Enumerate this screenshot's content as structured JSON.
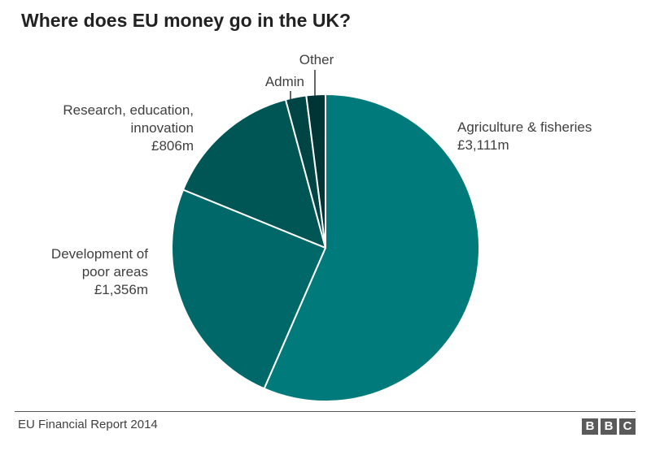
{
  "title": "Where does EU money go in the UK?",
  "source": "EU Financial Report 2014",
  "logo": [
    "B",
    "B",
    "C"
  ],
  "chart_data": {
    "type": "pie",
    "title": "Where does EU money go in the UK?",
    "slices": [
      {
        "label_lines": [
          "Agriculture & fisheries"
        ],
        "value_label": "£3,111m",
        "value": 3111,
        "color": "#007a7a"
      },
      {
        "label_lines": [
          "Development of",
          "poor areas"
        ],
        "value_label": "£1,356m",
        "value": 1356,
        "color": "#006868"
      },
      {
        "label_lines": [
          "Research, education,",
          "innovation"
        ],
        "value_label": "£806m",
        "value": 806,
        "color": "#005555"
      },
      {
        "label_lines": [
          "Admin"
        ],
        "value_label": "",
        "value": 120,
        "color": "#004545"
      },
      {
        "label_lines": [
          "Other"
        ],
        "value_label": "",
        "value": 110,
        "color": "#003535"
      }
    ]
  }
}
